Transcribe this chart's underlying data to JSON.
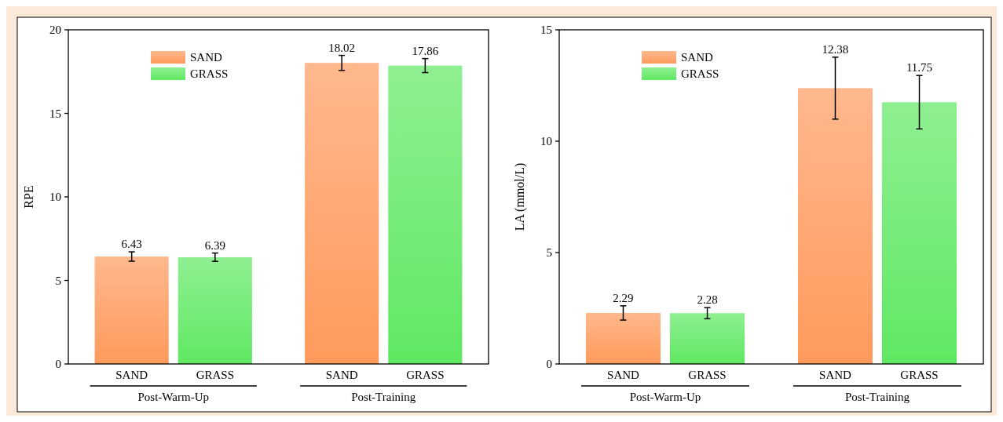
{
  "chart_data": [
    {
      "type": "bar",
      "ylabel": "RPE",
      "categories": [
        "Post-Warm-Up",
        "Post-Training"
      ],
      "ylim": [
        0,
        20
      ],
      "yticks": [
        0,
        5,
        10,
        15,
        20
      ],
      "grid": false,
      "legend": "top left",
      "data_labels": true,
      "series": [
        {
          "name": "SAND",
          "color": "#ff9a5c",
          "values": [
            6.43,
            18.02
          ],
          "errors": [
            0.28,
            0.45
          ]
        },
        {
          "name": "GRASS",
          "color": "#5fe862",
          "values": [
            6.39,
            17.86
          ],
          "errors": [
            0.25,
            0.42
          ]
        }
      ]
    },
    {
      "type": "bar",
      "ylabel": "LA (mmol/L)",
      "categories": [
        "Post-Warm-Up",
        "Post-Training"
      ],
      "ylim": [
        0,
        15
      ],
      "yticks": [
        0,
        5,
        10,
        15
      ],
      "grid": false,
      "legend": "top left",
      "data_labels": true,
      "series": [
        {
          "name": "SAND",
          "color": "#ff9a5c",
          "values": [
            2.29,
            12.38
          ],
          "errors": [
            0.32,
            1.39
          ]
        },
        {
          "name": "GRASS",
          "color": "#5fe862",
          "values": [
            2.28,
            11.75
          ],
          "errors": [
            0.25,
            1.2
          ]
        }
      ]
    }
  ]
}
